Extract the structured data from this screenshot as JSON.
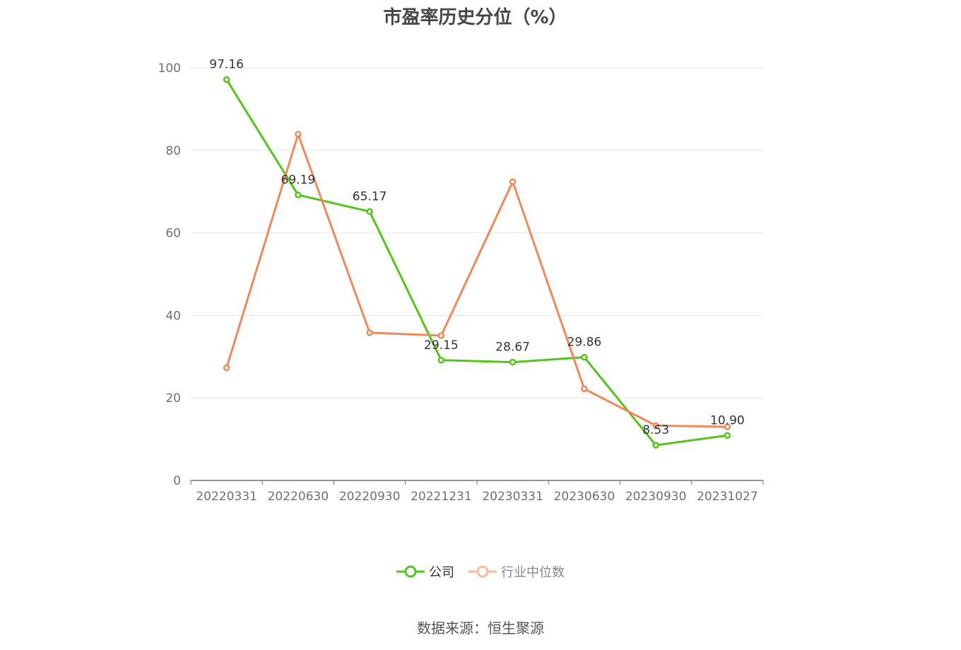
{
  "title": "市盈率历史分位（%）",
  "source": "数据来源：恒生聚源",
  "chart_data": {
    "type": "line",
    "title": "市盈率历史分位（%）",
    "categories": [
      "20220331",
      "20220630",
      "20220930",
      "20221231",
      "20230331",
      "20230630",
      "20230930",
      "20231027"
    ],
    "ylim": [
      0,
      100
    ],
    "yticks": [
      0,
      20,
      40,
      60,
      80,
      100
    ],
    "grid": true,
    "legend_position": "bottom",
    "series": [
      {
        "name": "公司",
        "color": "#52c41a",
        "values": [
          97.16,
          69.19,
          65.17,
          29.15,
          28.67,
          29.86,
          8.53,
          10.9
        ],
        "labels": [
          "97.16",
          "69.19",
          "65.17",
          "29.15",
          "28.67",
          "29.86",
          "8.53",
          "10.90"
        ]
      },
      {
        "name": "行业中位数",
        "color": "#f0895a",
        "values": [
          27.3,
          83.9,
          35.8,
          35.1,
          72.4,
          22.2,
          13.3,
          13.0
        ]
      }
    ]
  }
}
